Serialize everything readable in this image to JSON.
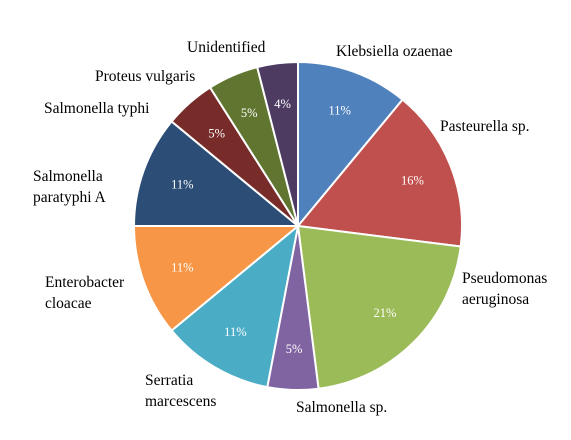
{
  "chart_data": {
    "type": "pie",
    "title": "",
    "slices": [
      {
        "category": [
          "Klebsiella ozaenae"
        ],
        "value": 11,
        "label": "11%",
        "color": "#4F81BD"
      },
      {
        "category": [
          "Pasteurella sp."
        ],
        "value": 16,
        "label": "16%",
        "color": "#C0504D"
      },
      {
        "category": [
          "Pseudomonas",
          "aeruginosa"
        ],
        "value": 21,
        "label": "21%",
        "color": "#9BBB59"
      },
      {
        "category": [
          "Salmonella sp."
        ],
        "value": 5,
        "label": "5%",
        "color": "#8064A2"
      },
      {
        "category": [
          "Serratia",
          "marcescens"
        ],
        "value": 11,
        "label": "11%",
        "color": "#4BACC6"
      },
      {
        "category": [
          "Enterobacter",
          "cloacae"
        ],
        "value": 11,
        "label": "11%",
        "color": "#F79646"
      },
      {
        "category": [
          "Salmonella",
          "paratyphi A"
        ],
        "value": 11,
        "label": "11%",
        "color": "#2C4D75"
      },
      {
        "category": [
          "Salmonella typhi"
        ],
        "value": 5,
        "label": "5%",
        "color": "#772C2A"
      },
      {
        "category": [
          "Proteus vulgaris"
        ],
        "value": 5,
        "label": "5%",
        "color": "#5F7530"
      },
      {
        "category": [
          "Unidentified"
        ],
        "value": 4,
        "label": "4%",
        "color": "#4D3B62"
      }
    ]
  }
}
